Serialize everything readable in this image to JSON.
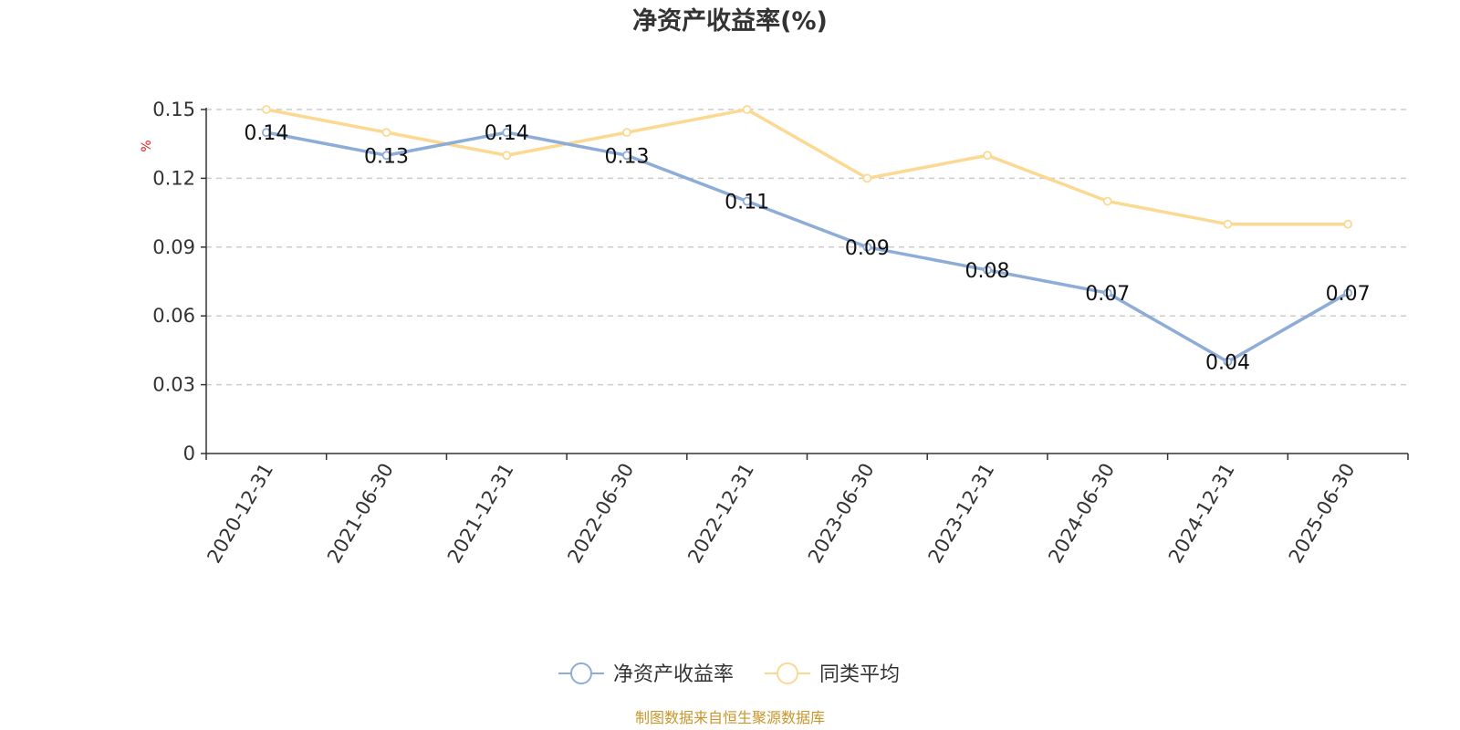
{
  "chart_data": {
    "type": "line",
    "title": "净资产收益率(%)",
    "ylabel": "%",
    "ylim": [
      0,
      0.15
    ],
    "yticks": [
      "0",
      "0.03",
      "0.06",
      "0.09",
      "0.12",
      "0.15"
    ],
    "grid": true,
    "legend_position": "bottom",
    "categories": [
      "2020-12-31",
      "2021-06-30",
      "2021-12-31",
      "2022-06-30",
      "2022-12-31",
      "2023-06-30",
      "2023-12-31",
      "2024-06-30",
      "2024-12-31",
      "2025-06-30"
    ],
    "series": [
      {
        "name": "净资产收益率",
        "color": "#8eacd8",
        "values": [
          0.14,
          0.13,
          0.14,
          0.13,
          0.11,
          0.09,
          0.08,
          0.07,
          0.04,
          0.07
        ],
        "labels": [
          "0.14",
          "0.13",
          "0.14",
          "0.13",
          "0.11",
          "0.09",
          "0.08",
          "0.07",
          "0.04",
          "0.07"
        ]
      },
      {
        "name": "同类平均",
        "color": "#fcd992",
        "values": [
          0.15,
          0.14,
          0.13,
          0.14,
          0.15,
          0.12,
          0.13,
          0.11,
          0.1,
          0.1
        ]
      }
    ]
  },
  "source_note": "制图数据来自恒生聚源数据库"
}
